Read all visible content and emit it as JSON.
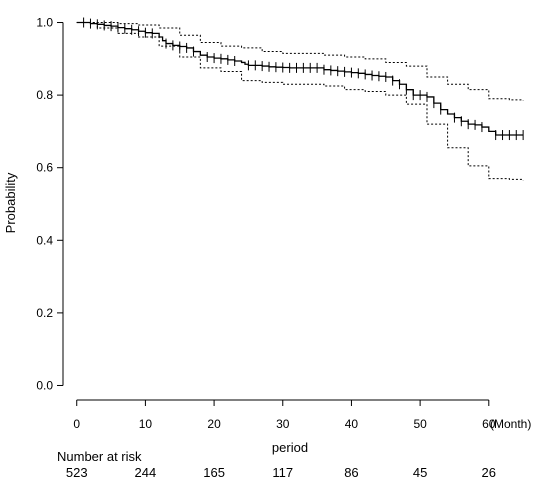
{
  "chart_data": {
    "type": "line",
    "xlabel": "period",
    "ylabel": "Probability",
    "x_unit_label": "(Month)",
    "xlim": [
      -2,
      66
    ],
    "ylim": [
      -0.04,
      1.04
    ],
    "x_ticks": [
      "0",
      "10",
      "20",
      "30",
      "40",
      "50",
      "60"
    ],
    "y_ticks": [
      "0.0",
      "0.2",
      "0.4",
      "0.6",
      "0.8",
      "1.0"
    ],
    "grid": false,
    "legend": "none",
    "series": [
      {
        "role": "estimate",
        "style": "solid",
        "x": [
          0,
          2,
          3,
          4,
          5,
          6,
          7,
          8,
          9,
          10,
          11,
          12,
          12.5,
          13,
          14,
          15,
          16,
          17,
          18,
          19,
          20,
          21,
          22,
          23,
          24,
          24.5,
          25,
          27,
          28,
          29,
          30,
          31,
          32,
          33,
          34,
          35,
          36,
          37,
          38,
          39,
          40,
          41,
          42,
          43,
          44,
          45,
          46,
          47,
          48,
          49,
          50,
          51,
          52,
          53,
          54,
          55,
          56,
          57,
          58,
          59,
          60,
          61,
          62,
          63,
          64,
          65
        ],
        "y": [
          1.0,
          0.997,
          0.995,
          0.992,
          0.99,
          0.986,
          0.983,
          0.98,
          0.976,
          0.972,
          0.97,
          0.96,
          0.95,
          0.942,
          0.937,
          0.934,
          0.93,
          0.92,
          0.91,
          0.905,
          0.902,
          0.9,
          0.897,
          0.894,
          0.89,
          0.885,
          0.882,
          0.88,
          0.878,
          0.877,
          0.876,
          0.875,
          0.875,
          0.875,
          0.875,
          0.875,
          0.87,
          0.868,
          0.866,
          0.864,
          0.862,
          0.86,
          0.857,
          0.854,
          0.852,
          0.85,
          0.84,
          0.83,
          0.815,
          0.8,
          0.8,
          0.795,
          0.778,
          0.76,
          0.748,
          0.738,
          0.728,
          0.72,
          0.718,
          0.712,
          0.7,
          0.69,
          0.69,
          0.69,
          0.69,
          0.69
        ]
      },
      {
        "role": "upper-ci",
        "style": "dotted",
        "x": [
          0,
          3,
          6,
          9,
          12,
          15,
          18,
          21,
          24,
          27,
          30,
          33,
          36,
          39,
          42,
          45,
          48,
          51,
          54,
          57,
          60,
          63,
          65
        ],
        "y": [
          1.0,
          1.0,
          0.997,
          0.993,
          0.985,
          0.965,
          0.945,
          0.935,
          0.93,
          0.92,
          0.915,
          0.915,
          0.91,
          0.905,
          0.9,
          0.89,
          0.88,
          0.85,
          0.83,
          0.815,
          0.79,
          0.787,
          0.785
        ]
      },
      {
        "role": "lower-ci",
        "style": "dotted",
        "x": [
          0,
          3,
          6,
          9,
          12,
          15,
          18,
          21,
          24,
          27,
          30,
          33,
          36,
          39,
          42,
          45,
          48,
          51,
          54,
          57,
          60,
          63,
          65
        ],
        "y": [
          1.0,
          0.985,
          0.97,
          0.96,
          0.935,
          0.905,
          0.875,
          0.865,
          0.84,
          0.835,
          0.83,
          0.83,
          0.825,
          0.815,
          0.81,
          0.8,
          0.775,
          0.72,
          0.655,
          0.605,
          0.57,
          0.568,
          0.565
        ]
      }
    ],
    "censor_x": [
      1,
      2,
      3,
      4,
      5,
      6,
      7,
      8,
      9,
      10,
      11,
      13,
      14,
      15,
      16,
      17,
      19,
      20,
      21,
      22,
      23,
      25,
      26,
      27,
      28,
      29,
      30,
      31,
      32,
      33,
      34,
      35,
      36,
      37,
      38,
      39,
      40,
      41,
      42,
      43,
      44,
      45,
      46,
      47,
      48,
      49,
      50,
      51,
      52,
      53,
      55,
      56,
      57,
      58,
      59,
      61,
      62,
      63,
      64,
      65
    ],
    "risk_table": {
      "title": "Number at risk",
      "x": [
        0,
        10,
        20,
        30,
        40,
        50,
        60
      ],
      "counts": [
        "523",
        "244",
        "165",
        "117",
        "86",
        "45",
        "26"
      ]
    }
  }
}
